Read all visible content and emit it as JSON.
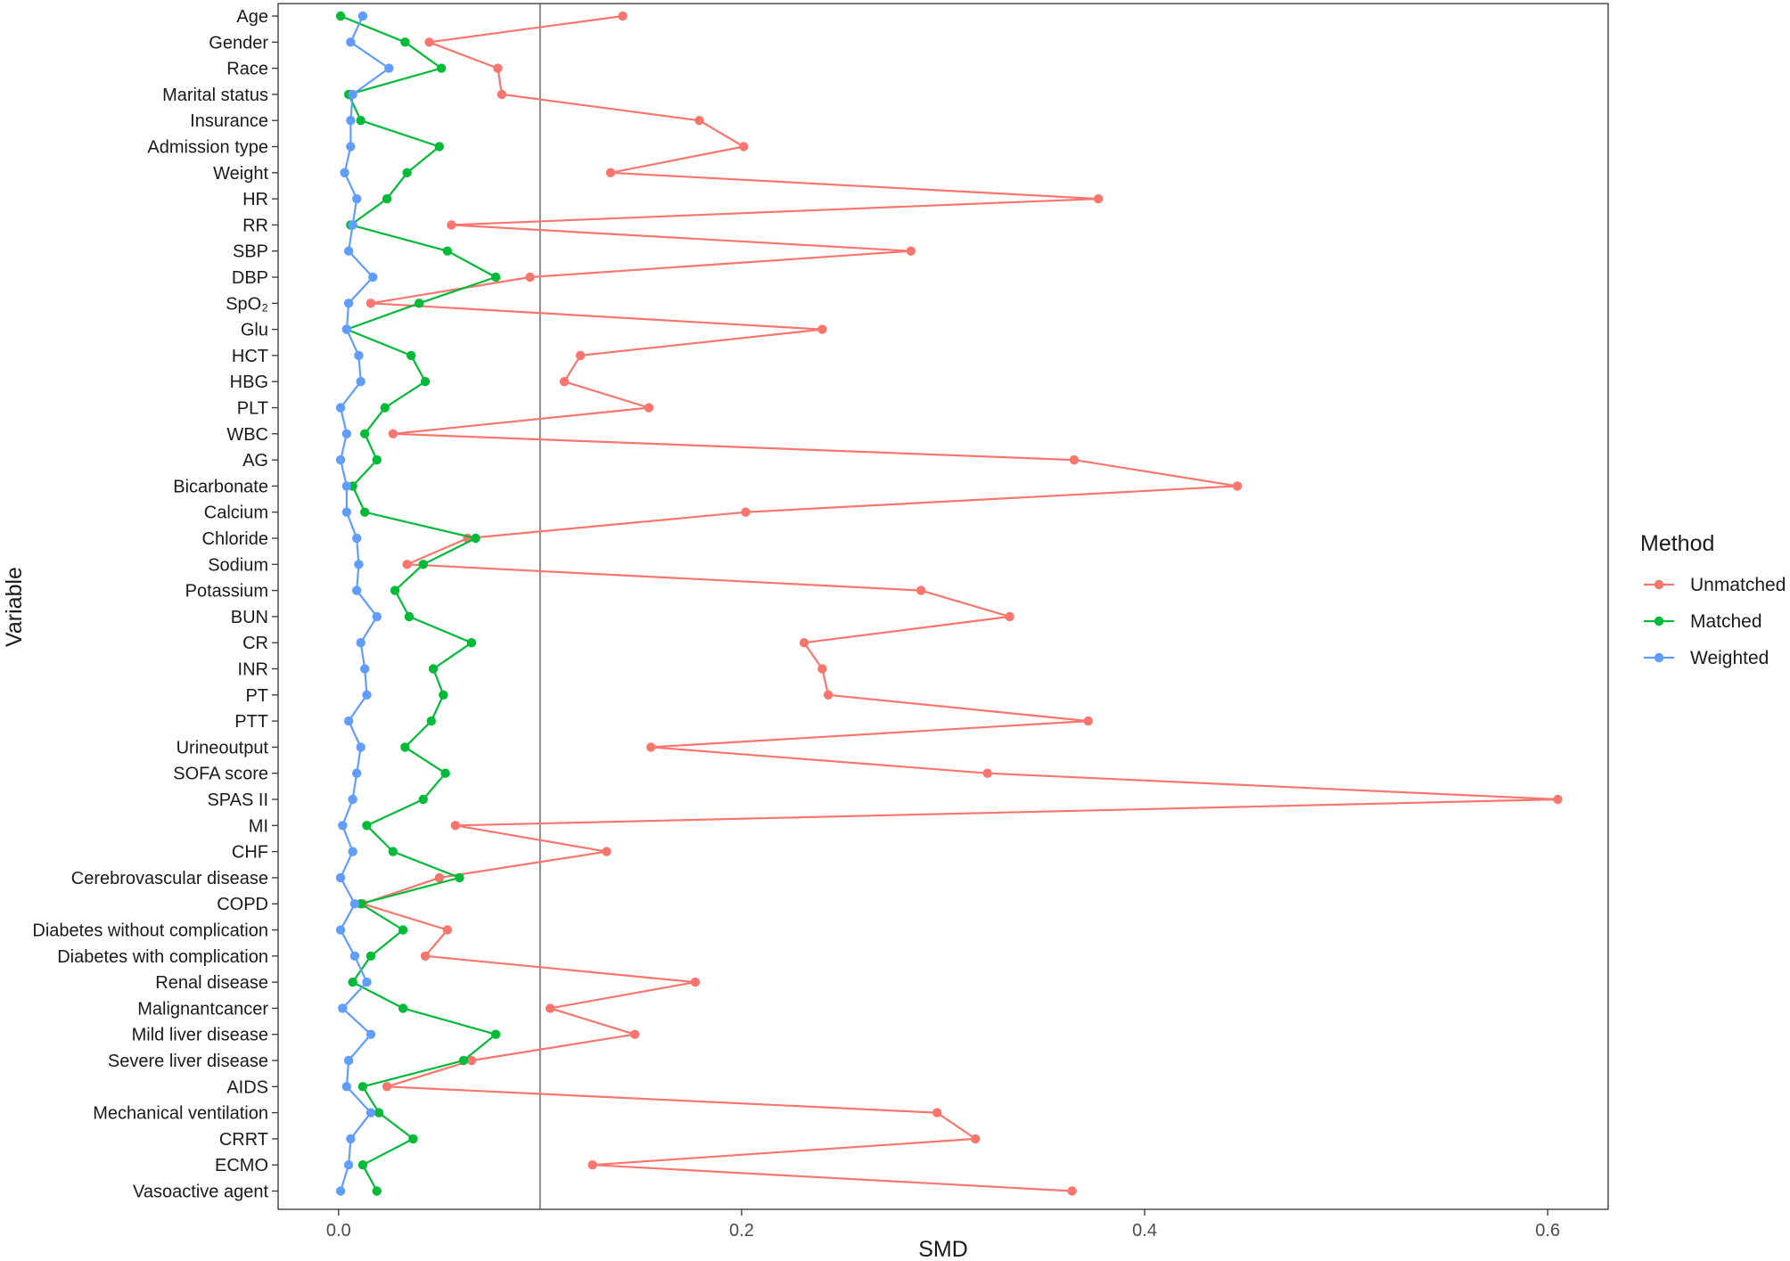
{
  "chart_data": {
    "type": "line",
    "title": "",
    "xlabel": "SMD",
    "ylabel": "Variable",
    "xlim": [
      -0.03,
      0.63
    ],
    "xticks": [
      0.0,
      0.2,
      0.4,
      0.6
    ],
    "xtick_labels": [
      "0.0",
      "0.2",
      "0.4",
      "0.6"
    ],
    "reference_line_x": 0.1,
    "grid": false,
    "legend_position": "right",
    "legend_title": "Method",
    "categories": [
      "Age",
      "Gender",
      "Race",
      "Marital status",
      "Insurance",
      "Admission type",
      "Weight",
      "HR",
      "RR",
      "SBP",
      "DBP",
      "SpO₂",
      "Glu",
      "HCT",
      "HBG",
      "PLT",
      "WBC",
      "AG",
      "Bicarbonate",
      "Calcium",
      "Chloride",
      "Sodium",
      "Potassium",
      "BUN",
      "CR",
      "INR",
      "PT",
      "PTT",
      "Urineoutput",
      "SOFA score",
      "SPAS II",
      "MI",
      "CHF",
      "Cerebrovascular disease",
      "COPD",
      "Diabetes without complication",
      "Diabetes with complication",
      "Renal disease",
      "Malignantcancer",
      "Mild liver disease",
      "Severe liver disease",
      "AIDS",
      "Mechanical ventilation",
      "CRRT",
      "ECMO",
      "Vasoactive agent"
    ],
    "series": [
      {
        "name": "Unmatched",
        "color": "#F8766D",
        "values": [
          0.141,
          0.045,
          0.079,
          0.081,
          0.179,
          0.201,
          0.135,
          0.377,
          0.056,
          0.284,
          0.095,
          0.016,
          0.24,
          0.12,
          0.112,
          0.154,
          0.027,
          0.365,
          0.446,
          0.202,
          0.064,
          0.034,
          0.289,
          0.333,
          0.231,
          0.24,
          0.243,
          0.372,
          0.155,
          0.322,
          0.605,
          0.058,
          0.133,
          0.05,
          0.012,
          0.054,
          0.043,
          0.177,
          0.105,
          0.147,
          0.066,
          0.024,
          0.297,
          0.316,
          0.126,
          0.364
        ]
      },
      {
        "name": "Matched",
        "color": "#00BA38",
        "values": [
          0.001,
          0.033,
          0.051,
          0.005,
          0.011,
          0.05,
          0.034,
          0.024,
          0.006,
          0.054,
          0.078,
          0.04,
          0.004,
          0.036,
          0.043,
          0.023,
          0.013,
          0.019,
          0.007,
          0.013,
          0.068,
          0.042,
          0.028,
          0.035,
          0.066,
          0.047,
          0.052,
          0.046,
          0.033,
          0.053,
          0.042,
          0.014,
          0.027,
          0.06,
          0.011,
          0.032,
          0.016,
          0.007,
          0.032,
          0.078,
          0.062,
          0.012,
          0.02,
          0.037,
          0.012,
          0.019
        ]
      },
      {
        "name": "Weighted",
        "color": "#619CFF",
        "values": [
          0.012,
          0.006,
          0.025,
          0.007,
          0.006,
          0.006,
          0.003,
          0.009,
          0.007,
          0.005,
          0.017,
          0.005,
          0.004,
          0.01,
          0.011,
          0.001,
          0.004,
          0.001,
          0.004,
          0.004,
          0.009,
          0.01,
          0.009,
          0.019,
          0.011,
          0.013,
          0.014,
          0.005,
          0.011,
          0.009,
          0.007,
          0.002,
          0.007,
          0.001,
          0.008,
          0.001,
          0.008,
          0.014,
          0.002,
          0.016,
          0.005,
          0.004,
          0.016,
          0.006,
          0.005,
          0.001
        ]
      }
    ]
  }
}
